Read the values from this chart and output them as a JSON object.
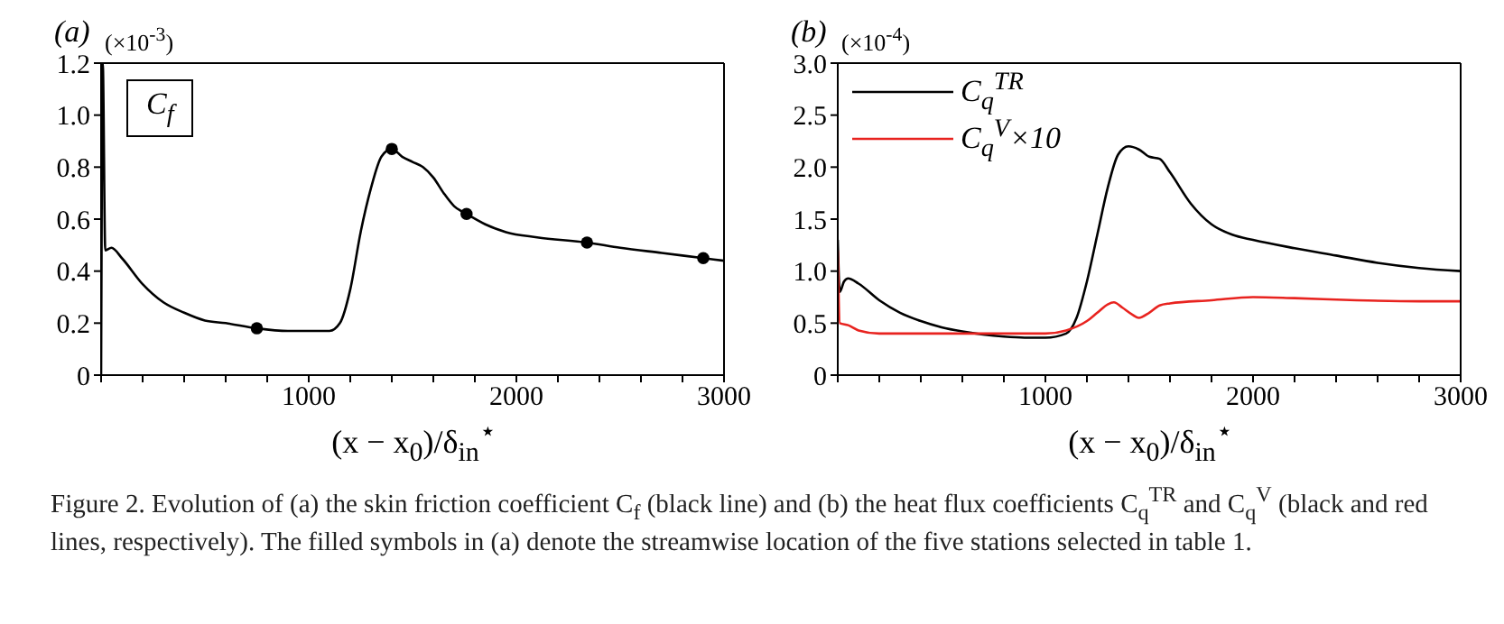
{
  "chart_data": [
    {
      "type": "line",
      "title": "(a)",
      "ylabel": "(×10$^{-3}$)",
      "xlabel": "(x − x$_{0}$)/δ$_{in}$$^{⋆}$",
      "annotations": [
        "C$_{f}$"
      ],
      "xlim": [
        0,
        3000
      ],
      "xticks": [
        {
          "value": 0,
          "label": null
        },
        {
          "value": 200,
          "label": null
        },
        {
          "value": 400,
          "label": null
        },
        {
          "value": 600,
          "label": null
        },
        {
          "value": 800,
          "label": null
        },
        1000,
        {
          "value": 1200,
          "label": null
        },
        {
          "value": 1400,
          "label": null
        },
        {
          "value": 1600,
          "label": null
        },
        {
          "value": 1800,
          "label": null
        },
        2000,
        {
          "value": 2200,
          "label": null
        },
        {
          "value": 2400,
          "label": null
        },
        {
          "value": 2600,
          "label": null
        },
        {
          "value": 2800,
          "label": null
        },
        3000
      ],
      "ylim": [
        0,
        1.2
      ],
      "yticks": [
        0,
        0.2,
        0.4,
        0.6,
        0.8,
        {
          "value": 1,
          "label": "1.0"
        },
        1.2
      ],
      "legend": false,
      "line_style": "solid",
      "series": [
        {
          "type": "line",
          "color": "#000000",
          "x": [
            0,
            8,
            20,
            50,
            100,
            200,
            300,
            400,
            500,
            600,
            750,
            900,
            1000,
            1100,
            1150,
            1200,
            1250,
            1300,
            1350,
            1400,
            1450,
            1500,
            1550,
            1600,
            1650,
            1700,
            1760,
            1850,
            1950,
            2100,
            2340,
            2500,
            2700,
            2900,
            3000
          ],
          "values": [
            0,
            1.2,
            0.48,
            0.49,
            0.45,
            0.35,
            0.28,
            0.24,
            0.21,
            0.2,
            0.18,
            0.17,
            0.17,
            0.17,
            0.2,
            0.33,
            0.55,
            0.72,
            0.84,
            0.87,
            0.84,
            0.82,
            0.8,
            0.76,
            0.7,
            0.65,
            0.62,
            0.58,
            0.55,
            0.53,
            0.51,
            0.49,
            0.47,
            0.45,
            0.44
          ]
        },
        {
          "type": "scatter",
          "marker": "circle",
          "color": "#000000",
          "x": [
            750,
            1400,
            1760,
            2340,
            2900
          ],
          "values": [
            0.18,
            0.87,
            0.62,
            0.51,
            0.45
          ]
        }
      ]
    },
    {
      "type": "line",
      "title": "(b)",
      "ylabel": "(×10$^{-4}$)",
      "xlabel": "(x − x$_{0}$)/δ$_{in}$$^{⋆}$",
      "annotations": [
        "Figure 2. Evolution of (a) the skin friction coefficient C$_{f}$ (black line) and (b) the heat flux coefficients C$_{q}$$^{TR}$ and C$_{q}$$^{V}$ (black and red lines, respectively). The filled symbols in (a) denote the streamwise location of the five stations selected in table 1."
      ],
      "xlim": [
        0,
        3000
      ],
      "xticks": [
        {
          "value": 0,
          "label": null
        },
        {
          "value": 200,
          "label": null
        },
        {
          "value": 400,
          "label": null
        },
        {
          "value": 600,
          "label": null
        },
        {
          "value": 800,
          "label": null
        },
        1000,
        {
          "value": 1200,
          "label": null
        },
        {
          "value": 1400,
          "label": null
        },
        {
          "value": 1600,
          "label": null
        },
        {
          "value": 1800,
          "label": null
        },
        2000,
        {
          "value": 2200,
          "label": null
        },
        {
          "value": 2400,
          "label": null
        },
        {
          "value": 2600,
          "label": null
        },
        {
          "value": 2800,
          "label": null
        },
        3000
      ],
      "ylim": [
        0,
        3
      ],
      "yticks": [
        0,
        0.5,
        {
          "value": 1,
          "label": "1.0"
        },
        1.5,
        {
          "value": 2,
          "label": "2.0"
        },
        2.5,
        {
          "value": 3,
          "label": "3.0"
        }
      ],
      "legend": "top left",
      "line_style": "solid",
      "series": [
        {
          "type": "line",
          "name": "C$_{q}$$^{TR}$",
          "color": "#000000",
          "x": [
            0,
            10,
            30,
            50,
            100,
            200,
            300,
            400,
            500,
            600,
            700,
            800,
            900,
            1000,
            1100,
            1150,
            1200,
            1250,
            1300,
            1350,
            1400,
            1450,
            1500,
            1550,
            1600,
            1700,
            1800,
            1900,
            2000,
            2200,
            2400,
            2600,
            2800,
            3000
          ],
          "values": [
            1.3,
            0.8,
            0.9,
            0.93,
            0.88,
            0.72,
            0.6,
            0.52,
            0.46,
            0.42,
            0.39,
            0.37,
            0.36,
            0.36,
            0.4,
            0.55,
            0.9,
            1.35,
            1.8,
            2.12,
            2.2,
            2.17,
            2.1,
            2.08,
            1.95,
            1.65,
            1.45,
            1.35,
            1.3,
            1.22,
            1.15,
            1.08,
            1.03,
            1
          ]
        },
        {
          "type": "line",
          "name": "C$_{q}$$^{V}$×10",
          "color": "#e8231f",
          "x": [
            0,
            10,
            50,
            100,
            200,
            400,
            600,
            800,
            1000,
            1100,
            1200,
            1250,
            1300,
            1330,
            1370,
            1420,
            1450,
            1500,
            1550,
            1600,
            1800,
            2000,
            2200,
            2500,
            2800,
            3000
          ],
          "values": [
            1.2,
            0.5,
            0.48,
            0.43,
            0.4,
            0.4,
            0.4,
            0.4,
            0.4,
            0.43,
            0.52,
            0.6,
            0.68,
            0.7,
            0.65,
            0.58,
            0.55,
            0.6,
            0.67,
            0.69,
            0.72,
            0.75,
            0.74,
            0.72,
            0.71,
            0.71
          ]
        }
      ]
    }
  ]
}
